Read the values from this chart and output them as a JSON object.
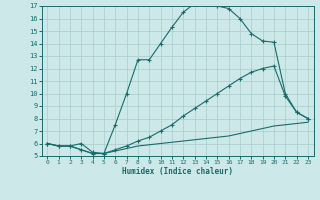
{
  "xlabel": "Humidex (Indice chaleur)",
  "bg_color": "#cce8e8",
  "line_color": "#1a6b6b",
  "grid_color": "#aacccc",
  "xlim": [
    -0.5,
    23.5
  ],
  "ylim": [
    5,
    17
  ],
  "xticks": [
    0,
    1,
    2,
    3,
    4,
    5,
    6,
    7,
    8,
    9,
    10,
    11,
    12,
    13,
    14,
    15,
    16,
    17,
    18,
    19,
    20,
    21,
    22,
    23
  ],
  "yticks": [
    5,
    6,
    7,
    8,
    9,
    10,
    11,
    12,
    13,
    14,
    15,
    16,
    17
  ],
  "line1_x": [
    0,
    1,
    2,
    3,
    4,
    5,
    6,
    7,
    8,
    9,
    10,
    11,
    12,
    13,
    14,
    15,
    16,
    17,
    18,
    19,
    20,
    21,
    22,
    23
  ],
  "line1_y": [
    6.0,
    5.8,
    5.8,
    6.0,
    5.3,
    5.2,
    7.5,
    10.0,
    12.7,
    12.7,
    14.0,
    15.3,
    16.5,
    17.2,
    17.3,
    17.0,
    16.8,
    16.0,
    14.8,
    14.2,
    14.1,
    10.0,
    8.5,
    8.0
  ],
  "line2_x": [
    0,
    1,
    2,
    3,
    4,
    5,
    6,
    7,
    8,
    9,
    10,
    11,
    12,
    13,
    14,
    15,
    16,
    17,
    18,
    19,
    20,
    21,
    22,
    23
  ],
  "line2_y": [
    6.0,
    5.8,
    5.8,
    5.5,
    5.2,
    5.2,
    5.5,
    5.8,
    6.2,
    6.5,
    7.0,
    7.5,
    8.2,
    8.8,
    9.4,
    10.0,
    10.6,
    11.2,
    11.7,
    12.0,
    12.2,
    9.8,
    8.5,
    8.0
  ],
  "line3_x": [
    0,
    1,
    2,
    3,
    4,
    5,
    6,
    7,
    8,
    9,
    10,
    11,
    12,
    13,
    14,
    15,
    16,
    17,
    18,
    19,
    20,
    21,
    22,
    23
  ],
  "line3_y": [
    6.0,
    5.8,
    5.8,
    5.5,
    5.2,
    5.2,
    5.4,
    5.6,
    5.8,
    5.9,
    6.0,
    6.1,
    6.2,
    6.3,
    6.4,
    6.5,
    6.6,
    6.8,
    7.0,
    7.2,
    7.4,
    7.5,
    7.6,
    7.7
  ]
}
